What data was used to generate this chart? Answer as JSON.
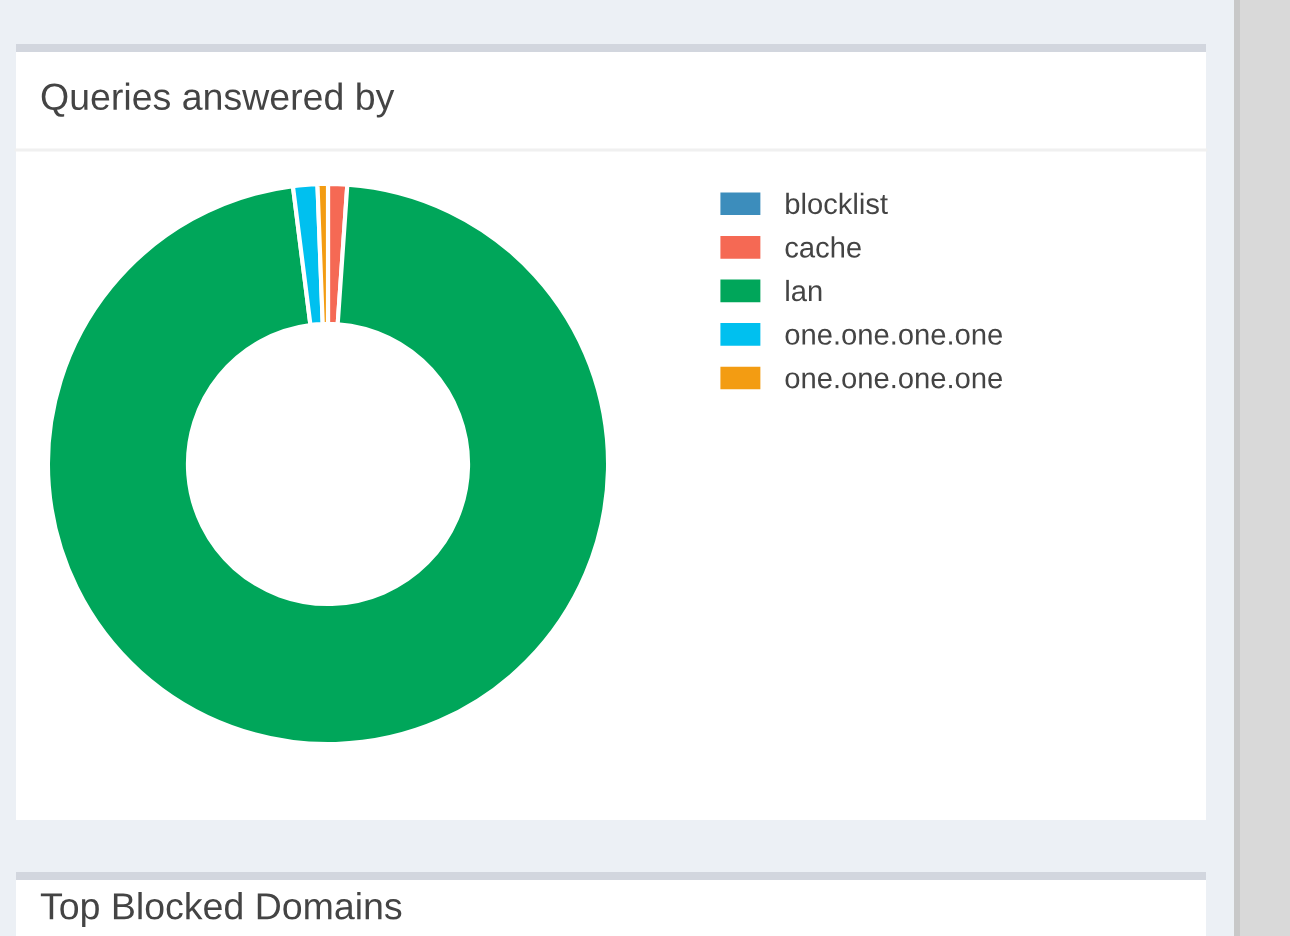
{
  "chart_data": {
    "type": "donut",
    "title": "Queries answered by",
    "categories": [
      "blocklist",
      "cache",
      "lan",
      "one.one.one.one",
      "one.one.one.one"
    ],
    "values": [
      0,
      1.1,
      96.9,
      1.4,
      0.6
    ],
    "colors": [
      "#3c8dbc",
      "#f56954",
      "#00a65a",
      "#00c0ef",
      "#f39c12"
    ],
    "legend": "top right",
    "annotations": [
      "Top Blocked Domains"
    ]
  }
}
